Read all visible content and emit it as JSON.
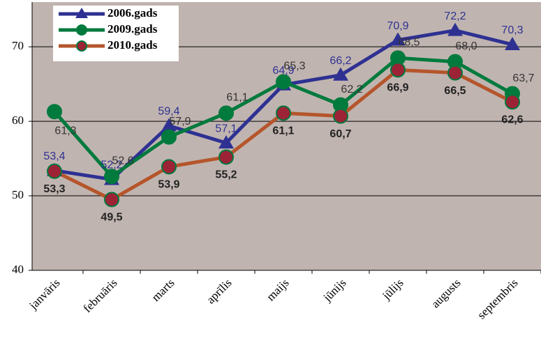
{
  "chart_data": {
    "type": "line",
    "categories": [
      "janvāris",
      "februāris",
      "marts",
      "aprīlis",
      "maijs",
      "jūnijs",
      "jūlijs",
      "augusts",
      "septembris"
    ],
    "series": [
      {
        "name": "2006.gads",
        "color": "#2e3192",
        "marker": "triangle",
        "values": [
          53.4,
          52.2,
          59.4,
          57.1,
          64.9,
          66.2,
          70.9,
          72.2,
          70.3
        ],
        "value_labels": [
          "53,4",
          "52,2",
          "59,4",
          "57,1",
          "64,9",
          "66,2",
          "70,9",
          "72,2",
          "70,3"
        ]
      },
      {
        "name": "2009.gads",
        "color": "#007a3d",
        "marker": "circle",
        "values": [
          61.3,
          52.6,
          57.9,
          61.1,
          65.3,
          62.2,
          68.5,
          68.0,
          63.7
        ],
        "value_labels": [
          "61,3",
          "52,6",
          "57,9",
          "61,1",
          "65,3",
          "62,2",
          "68,5",
          "68,0",
          "63,7"
        ]
      },
      {
        "name": "2010.gads",
        "color": "#b5552b",
        "marker": "circle",
        "values": [
          53.3,
          49.5,
          53.9,
          55.2,
          61.1,
          60.7,
          66.9,
          66.5,
          62.6
        ],
        "value_labels": [
          "53,3",
          "49,5",
          "53,9",
          "55,2",
          "61,1",
          "60,7",
          "66,9",
          "66,5",
          "62,6"
        ]
      }
    ],
    "ylim": [
      40,
      76
    ],
    "yticks": [
      40,
      50,
      60,
      70
    ],
    "grid": true,
    "legend": "top-left"
  }
}
